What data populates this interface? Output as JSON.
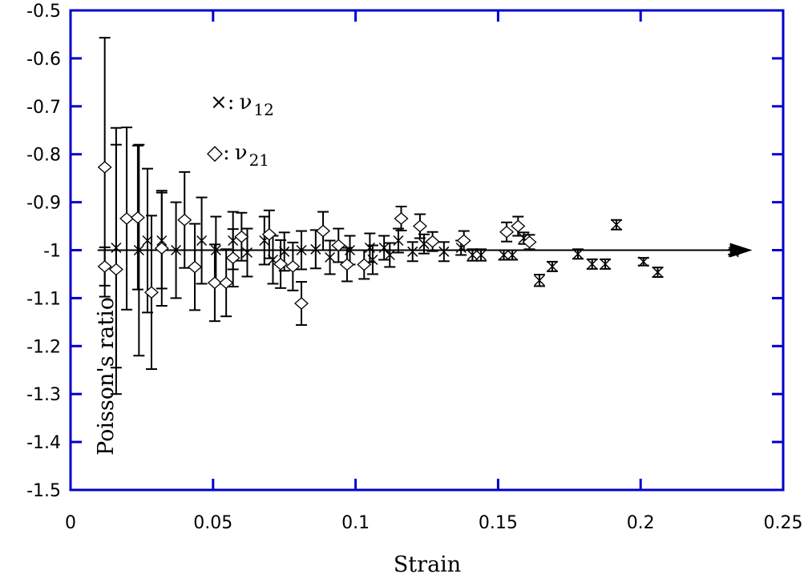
{
  "chart_data": {
    "type": "scatter",
    "title": "",
    "xlabel": "Strain",
    "ylabel": "Poisson's ratio",
    "xlim": [
      0,
      0.25
    ],
    "ylim": [
      -1.5,
      -0.5
    ],
    "xticks": [
      "0",
      "0.05",
      "0.1",
      "0.15",
      "0.2",
      "0.25"
    ],
    "xtick_values": [
      0,
      0.05,
      0.1,
      0.15,
      0.2,
      0.25
    ],
    "yticks": [
      "-0.5",
      "-0.6",
      "-0.7",
      "-0.8",
      "-0.9",
      "-1",
      "-1.1",
      "-1.2",
      "-1.3",
      "-1.4",
      "-1.5"
    ],
    "ytick_values": [
      -0.5,
      -0.6,
      -0.7,
      -0.8,
      -0.9,
      -1.0,
      -1.1,
      -1.2,
      -1.3,
      -1.4,
      -1.5
    ],
    "grid": false,
    "legend": [
      {
        "marker": "×",
        "sep": ":",
        "symbol": "ν",
        "sub": "12"
      },
      {
        "marker": "◇",
        "sep": ":",
        "symbol": "ν",
        "sub": "21"
      }
    ],
    "legend_placement": "top-left",
    "reference_line": {
      "y": -1.0,
      "x_start": 0.0095,
      "x_end": 0.2375,
      "arrow": true
    },
    "colors": {
      "axes": "#0000cc",
      "data": "#000000"
    },
    "series": [
      {
        "name": "v12",
        "marker": "x",
        "points": [
          {
            "x": 0.016,
            "y": -0.995,
            "err": 0.25
          },
          {
            "x": 0.024,
            "y": -1.0,
            "err": 0.22
          },
          {
            "x": 0.027,
            "y": -0.98,
            "err": 0.15
          },
          {
            "x": 0.032,
            "y": -0.98,
            "err": 0.1
          },
          {
            "x": 0.037,
            "y": -1.0,
            "err": 0.1
          },
          {
            "x": 0.046,
            "y": -0.98,
            "err": 0.09
          },
          {
            "x": 0.051,
            "y": -1.0,
            "err": 0.07
          },
          {
            "x": 0.057,
            "y": -0.98,
            "err": 0.06
          },
          {
            "x": 0.062,
            "y": -1.005,
            "err": 0.05
          },
          {
            "x": 0.068,
            "y": -0.98,
            "err": 0.05
          },
          {
            "x": 0.071,
            "y": -1.02,
            "err": 0.05
          },
          {
            "x": 0.075,
            "y": -1.003,
            "err": 0.04
          },
          {
            "x": 0.081,
            "y": -1.0,
            "err": 0.04
          },
          {
            "x": 0.086,
            "y": -0.998,
            "err": 0.04
          },
          {
            "x": 0.091,
            "y": -1.015,
            "err": 0.035
          },
          {
            "x": 0.098,
            "y": -1.0,
            "err": 0.03
          },
          {
            "x": 0.105,
            "y": -0.995,
            "err": 0.03
          },
          {
            "x": 0.106,
            "y": -1.02,
            "err": 0.03
          },
          {
            "x": 0.11,
            "y": -0.995,
            "err": 0.025
          },
          {
            "x": 0.112,
            "y": -1.01,
            "err": 0.025
          },
          {
            "x": 0.115,
            "y": -0.98,
            "err": 0.025
          },
          {
            "x": 0.12,
            "y": -1.003,
            "err": 0.02
          },
          {
            "x": 0.124,
            "y": -0.987,
            "err": 0.02
          },
          {
            "x": 0.131,
            "y": -1.003,
            "err": 0.02
          },
          {
            "x": 0.137,
            "y": -0.995,
            "err": 0.015
          },
          {
            "x": 0.141,
            "y": -1.01,
            "err": 0.012
          },
          {
            "x": 0.144,
            "y": -1.01,
            "err": 0.012
          },
          {
            "x": 0.152,
            "y": -1.01,
            "err": 0.01
          },
          {
            "x": 0.155,
            "y": -1.01,
            "err": 0.01
          },
          {
            "x": 0.159,
            "y": -0.975,
            "err": 0.012
          },
          {
            "x": 0.1645,
            "y": -1.063,
            "err": 0.012
          },
          {
            "x": 0.169,
            "y": -1.034,
            "err": 0.01
          },
          {
            "x": 0.178,
            "y": -1.008,
            "err": 0.01
          },
          {
            "x": 0.183,
            "y": -1.029,
            "err": 0.01
          },
          {
            "x": 0.1876,
            "y": -1.029,
            "err": 0.01
          },
          {
            "x": 0.1915,
            "y": -0.947,
            "err": 0.01
          },
          {
            "x": 0.201,
            "y": -1.024,
            "err": 0.008
          },
          {
            "x": 0.206,
            "y": -1.046,
            "err": 0.01
          },
          {
            "x": 0.2326,
            "y": -1.004,
            "err": 0.005
          }
        ]
      },
      {
        "name": "v21",
        "marker": "diamond",
        "points": [
          {
            "x": 0.012,
            "y": -0.827,
            "err": 0.27
          },
          {
            "x": 0.012,
            "y": -1.034,
            "err": 0.04
          },
          {
            "x": 0.016,
            "y": -1.04,
            "err": 0.26
          },
          {
            "x": 0.0197,
            "y": -0.934,
            "err": 0.19
          },
          {
            "x": 0.0236,
            "y": -0.932,
            "err": 0.15
          },
          {
            "x": 0.0284,
            "y": -1.088,
            "err": 0.16
          },
          {
            "x": 0.032,
            "y": -0.996,
            "err": 0.12
          },
          {
            "x": 0.04,
            "y": -0.937,
            "err": 0.1
          },
          {
            "x": 0.0436,
            "y": -1.035,
            "err": 0.09
          },
          {
            "x": 0.0506,
            "y": -1.068,
            "err": 0.08
          },
          {
            "x": 0.0546,
            "y": -1.068,
            "err": 0.07
          },
          {
            "x": 0.057,
            "y": -1.016,
            "err": 0.06
          },
          {
            "x": 0.06,
            "y": -0.972,
            "err": 0.05
          },
          {
            "x": 0.0697,
            "y": -0.967,
            "err": 0.05
          },
          {
            "x": 0.0737,
            "y": -1.029,
            "err": 0.05
          },
          {
            "x": 0.078,
            "y": -1.034,
            "err": 0.05
          },
          {
            "x": 0.081,
            "y": -1.111,
            "err": 0.045
          },
          {
            "x": 0.0886,
            "y": -0.96,
            "err": 0.04
          },
          {
            "x": 0.094,
            "y": -0.99,
            "err": 0.035
          },
          {
            "x": 0.097,
            "y": -1.03,
            "err": 0.035
          },
          {
            "x": 0.103,
            "y": -1.03,
            "err": 0.03
          },
          {
            "x": 0.116,
            "y": -0.934,
            "err": 0.025
          },
          {
            "x": 0.1226,
            "y": -0.95,
            "err": 0.025
          },
          {
            "x": 0.127,
            "y": -0.982,
            "err": 0.02
          },
          {
            "x": 0.138,
            "y": -0.98,
            "err": 0.02
          },
          {
            "x": 0.153,
            "y": -0.962,
            "err": 0.02
          },
          {
            "x": 0.157,
            "y": -0.95,
            "err": 0.02
          },
          {
            "x": 0.161,
            "y": -0.983,
            "err": 0.015
          }
        ]
      }
    ]
  }
}
